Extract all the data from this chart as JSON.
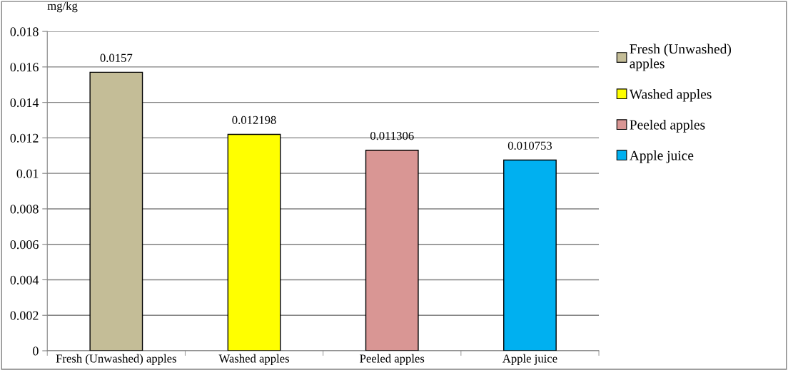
{
  "chart_data": {
    "type": "bar",
    "ylabel": "mg/kg",
    "categories": [
      "Fresh (Unwashed) apples",
      "Washed apples",
      "Peeled apples",
      "Apple juice"
    ],
    "series": [
      {
        "name": "Fresh (Unwashed)\napples",
        "color": "#c4bd97",
        "values": [
          0.0157,
          null,
          null,
          null
        ]
      },
      {
        "name": "Washed apples",
        "color": "#ffff00",
        "values": [
          null,
          0.012198,
          null,
          null
        ]
      },
      {
        "name": "Peeled apples",
        "color": "#d99694",
        "values": [
          null,
          null,
          0.011306,
          null
        ]
      },
      {
        "name": "Apple juice",
        "color": "#00b0f0",
        "values": [
          null,
          null,
          null,
          0.010753
        ]
      }
    ],
    "ylim": [
      0,
      0.018
    ],
    "yticks": [
      0,
      0.002,
      0.004,
      0.006,
      0.008,
      0.01,
      0.012,
      0.014,
      0.016,
      0.018
    ],
    "grid": "y",
    "legend": "right",
    "data_labels": true
  }
}
